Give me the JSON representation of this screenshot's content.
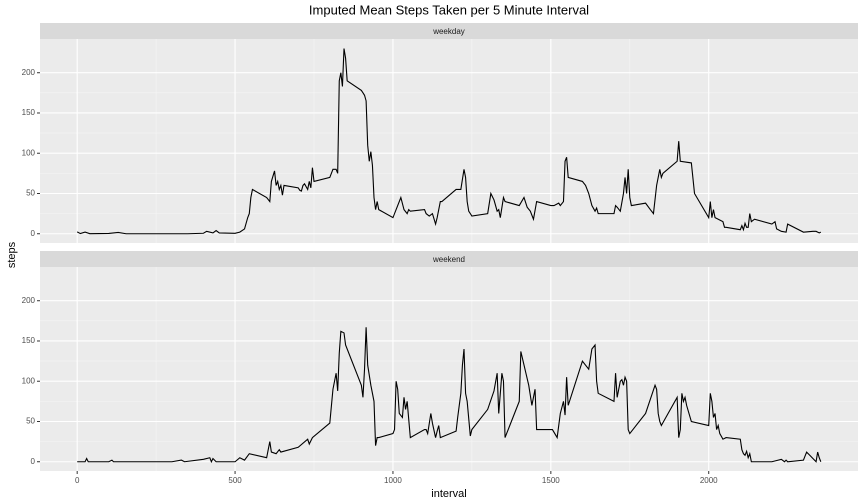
{
  "chart_data": {
    "type": "line",
    "title": "Imputed Mean Steps Taken per 5 Minute Interval",
    "xlabel": "interval",
    "ylabel": "steps",
    "xlim": [
      -117.75,
      2472.75
    ],
    "xticks": [
      0,
      500,
      1000,
      1500,
      2000
    ],
    "ylim": [
      -11.5,
      241.9
    ],
    "yticks": [
      0,
      50,
      100,
      150,
      200
    ],
    "grid": true,
    "color": "#000000",
    "panels": [
      {
        "name": "weekday",
        "x": [
          0,
          10,
          25,
          40,
          100,
          130,
          155,
          200,
          250,
          300,
          350,
          400,
          410,
          430,
          440,
          450,
          500,
          515,
          530,
          540,
          545,
          550,
          555,
          600,
          610,
          615,
          625,
          630,
          635,
          640,
          645,
          650,
          655,
          700,
          705,
          710,
          715,
          720,
          730,
          735,
          740,
          745,
          750,
          800,
          810,
          820,
          825,
          830,
          835,
          840,
          845,
          850,
          855,
          900,
          905,
          910,
          915,
          920,
          925,
          930,
          935,
          940,
          945,
          950,
          955,
          1000,
          1015,
          1025,
          1035,
          1045,
          1050,
          1055,
          1100,
          1105,
          1115,
          1125,
          1135,
          1140,
          1145,
          1150,
          1155,
          1200,
          1215,
          1225,
          1230,
          1235,
          1240,
          1250,
          1300,
          1310,
          1320,
          1330,
          1335,
          1340,
          1350,
          1355,
          1400,
          1415,
          1425,
          1435,
          1445,
          1455,
          1500,
          1510,
          1525,
          1530,
          1540,
          1545,
          1550,
          1555,
          1600,
          1610,
          1620,
          1630,
          1640,
          1645,
          1650,
          1700,
          1705,
          1710,
          1720,
          1730,
          1735,
          1740,
          1745,
          1750,
          1755,
          1800,
          1815,
          1825,
          1835,
          1845,
          1850,
          1855,
          1900,
          1905,
          1910,
          1945,
          1955,
          2000,
          2005,
          2010,
          2015,
          2020,
          2045,
          2050,
          2055,
          2100,
          2105,
          2110,
          2115,
          2120,
          2125,
          2130,
          2135,
          2145,
          2200,
          2210,
          2215,
          2230,
          2245,
          2250,
          2300,
          2330,
          2340,
          2345,
          2350,
          2355
        ],
        "values": [
          2.3,
          0.2,
          2,
          0.1,
          0.4,
          1.6,
          0,
          0,
          0,
          0,
          0,
          0.6,
          3,
          1,
          4,
          1,
          0.5,
          2,
          6,
          20,
          25,
          45,
          55,
          45,
          40,
          65,
          78,
          60,
          65,
          55,
          60,
          48,
          60,
          57,
          54,
          53,
          60,
          62,
          55,
          65,
          57,
          82,
          65,
          70,
          80,
          80,
          75,
          190,
          200,
          183,
          230,
          218,
          190,
          178,
          175,
          172,
          165,
          110,
          90,
          102,
          85,
          45,
          30,
          40,
          30,
          20,
          35,
          45,
          30,
          25,
          30,
          28,
          30,
          25,
          22,
          25,
          12,
          20,
          30,
          40,
          40,
          55,
          55,
          80,
          70,
          40,
          28,
          22,
          25,
          50,
          42,
          28,
          30,
          20,
          45,
          40,
          35,
          45,
          33,
          28,
          18,
          40,
          35,
          35,
          38,
          35,
          40,
          90,
          95,
          70,
          65,
          60,
          50,
          35,
          28,
          32,
          25,
          25,
          35,
          33,
          28,
          50,
          70,
          50,
          80,
          45,
          35,
          38,
          30,
          25,
          60,
          80,
          70,
          75,
          90,
          115,
          90,
          88,
          50,
          20,
          40,
          20,
          30,
          20,
          15,
          8,
          8,
          5,
          10,
          5,
          13,
          8,
          8,
          25,
          15,
          18,
          12,
          15,
          6,
          3,
          2,
          12,
          2,
          3,
          3,
          2,
          1,
          2
        ]
      },
      {
        "name": "weekend",
        "x": [
          0,
          25,
          30,
          35,
          100,
          110,
          115,
          200,
          300,
          330,
          340,
          400,
          420,
          425,
          430,
          440,
          500,
          515,
          530,
          545,
          600,
          610,
          615,
          630,
          640,
          645,
          700,
          730,
          735,
          745,
          800,
          810,
          815,
          820,
          825,
          830,
          835,
          845,
          850,
          900,
          905,
          910,
          915,
          920,
          930,
          940,
          945,
          950,
          955,
          1000,
          1005,
          1010,
          1015,
          1020,
          1030,
          1035,
          1040,
          1045,
          1055,
          1100,
          1105,
          1110,
          1120,
          1125,
          1135,
          1140,
          1145,
          1150,
          1200,
          1205,
          1215,
          1220,
          1225,
          1230,
          1235,
          1245,
          1250,
          1300,
          1320,
          1330,
          1335,
          1345,
          1350,
          1355,
          1400,
          1405,
          1430,
          1440,
          1450,
          1455,
          1500,
          1505,
          1520,
          1530,
          1540,
          1545,
          1550,
          1555,
          1600,
          1620,
          1630,
          1640,
          1645,
          1650,
          1700,
          1705,
          1710,
          1715,
          1720,
          1725,
          1730,
          1735,
          1740,
          1745,
          1750,
          1800,
          1830,
          1835,
          1840,
          1845,
          1850,
          1900,
          1905,
          1910,
          1915,
          1920,
          1925,
          1930,
          1945,
          2000,
          2005,
          2010,
          2015,
          2020,
          2025,
          2030,
          2035,
          2045,
          2055,
          2100,
          2105,
          2110,
          2115,
          2120,
          2125,
          2130,
          2135,
          2200,
          2230,
          2240,
          2245,
          2250,
          2300,
          2310,
          2320,
          2330,
          2340,
          2345,
          2350,
          2355
        ],
        "values": [
          0,
          0,
          4,
          0,
          0,
          2,
          0,
          0,
          0,
          2,
          0,
          3,
          5,
          0,
          4,
          0,
          0,
          5,
          2,
          10,
          5,
          25,
          12,
          10,
          15,
          12,
          18,
          28,
          22,
          30,
          48,
          90,
          100,
          110,
          88,
          135,
          162,
          160,
          145,
          95,
          80,
          115,
          167,
          120,
          95,
          75,
          20,
          30,
          30,
          35,
          40,
          100,
          90,
          60,
          55,
          80,
          65,
          75,
          30,
          40,
          40,
          35,
          60,
          48,
          30,
          38,
          45,
          30,
          38,
          55,
          85,
          120,
          140,
          85,
          75,
          32,
          40,
          65,
          88,
          110,
          60,
          110,
          100,
          30,
          75,
          137,
          95,
          70,
          90,
          40,
          40,
          40,
          30,
          60,
          75,
          58,
          105,
          70,
          125,
          115,
          140,
          145,
          100,
          85,
          75,
          110,
          80,
          90,
          100,
          102,
          95,
          105,
          100,
          40,
          35,
          60,
          95,
          90,
          60,
          50,
          45,
          80,
          30,
          40,
          85,
          75,
          80,
          70,
          50,
          45,
          85,
          75,
          55,
          60,
          40,
          45,
          35,
          28,
          30,
          28,
          15,
          10,
          8,
          13,
          5,
          10,
          0,
          0,
          3,
          0,
          2,
          0,
          2,
          12,
          8,
          4,
          0,
          12,
          5,
          0
        ]
      }
    ]
  }
}
